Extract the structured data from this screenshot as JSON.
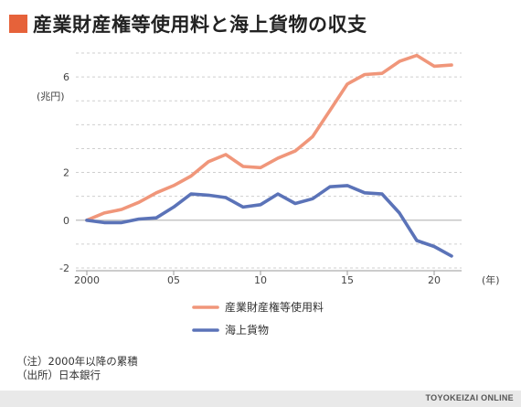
{
  "title": "産業財産権等使用料と海上貨物の収支",
  "notes": [
    "（注）2000年以降の累積",
    "（出所）日本銀行"
  ],
  "footer": "TOYOKEIZAI ONLINE",
  "colors": {
    "accent": "#e6623a",
    "series1": "#f0967a",
    "series2": "#5b73b8"
  },
  "chart_data": {
    "type": "line",
    "unit_label": "(兆円)",
    "x_unit_label": "(年)",
    "x": [
      2000,
      2001,
      2002,
      2003,
      2004,
      2005,
      2006,
      2007,
      2008,
      2009,
      2010,
      2011,
      2012,
      2013,
      2014,
      2015,
      2016,
      2017,
      2018,
      2019,
      2020,
      2021
    ],
    "x_ticks": [
      {
        "value": 2000,
        "label": "2000"
      },
      {
        "value": 2005,
        "label": "05"
      },
      {
        "value": 2010,
        "label": "10"
      },
      {
        "value": 2015,
        "label": "15"
      },
      {
        "value": 2020,
        "label": "20"
      }
    ],
    "y_ticks": [
      {
        "value": -2,
        "label": "-2"
      },
      {
        "value": 0,
        "label": "0"
      },
      {
        "value": 2,
        "label": "2"
      },
      {
        "value": 6,
        "label": "6"
      }
    ],
    "ylim": [
      -2,
      7
    ],
    "xlim": [
      2000,
      2021
    ],
    "grid": true,
    "legend_position": "bottom-center",
    "series": [
      {
        "name": "産業財産権等使用料",
        "color": "#f0967a",
        "values": [
          0.0,
          0.3,
          0.45,
          0.75,
          1.15,
          1.45,
          1.85,
          2.45,
          2.75,
          2.25,
          2.2,
          2.6,
          2.9,
          3.5,
          4.6,
          5.7,
          6.1,
          6.15,
          6.65,
          6.9,
          6.45,
          6.5
        ]
      },
      {
        "name": "海上貨物",
        "color": "#5b73b8",
        "values": [
          0.0,
          -0.1,
          -0.1,
          0.05,
          0.1,
          0.55,
          1.1,
          1.05,
          0.95,
          0.55,
          0.65,
          1.1,
          0.7,
          0.9,
          1.4,
          1.45,
          1.15,
          1.1,
          0.3,
          -0.85,
          -1.1,
          -1.5
        ]
      }
    ]
  }
}
